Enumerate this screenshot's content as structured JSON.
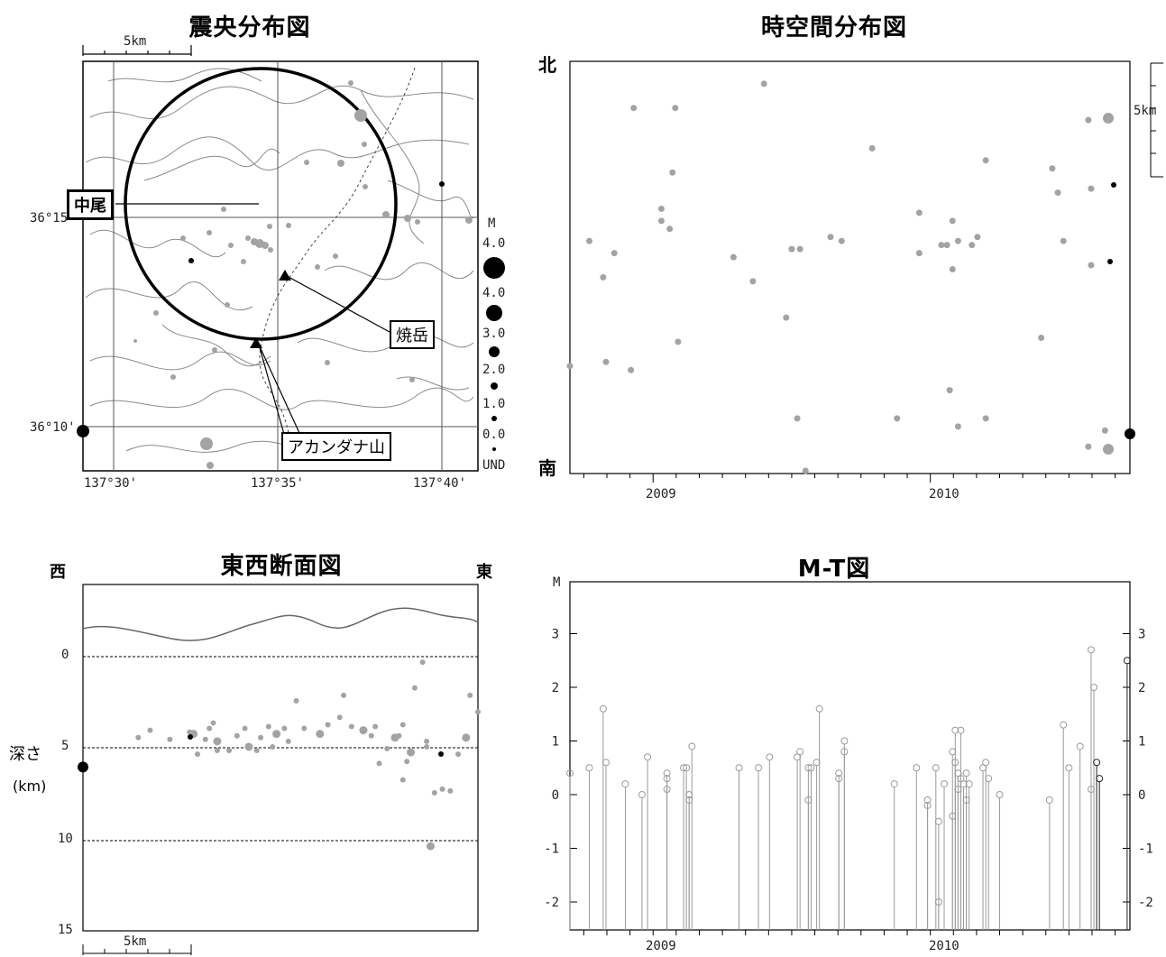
{
  "map": {
    "title": "震央分布図",
    "scale_label": "5km",
    "lat_labels": [
      "36°15'",
      "36°10'"
    ],
    "lon_labels": [
      "137°30'",
      "137°35'",
      "137°40'"
    ],
    "callouts": [
      "中尾",
      "焼岳",
      "アカンダナ山"
    ],
    "legend_title": "M",
    "legend_labels": [
      "4.0",
      "4.0",
      "3.0",
      "2.0",
      "1.0",
      "0.0",
      "UND"
    ]
  },
  "space_time": {
    "title": "時空間分布図",
    "north_label": "北",
    "south_label": "南",
    "scale_label": "5km",
    "x_ticks": [
      "2009",
      "2010"
    ]
  },
  "cross_section": {
    "title": "東西断面図",
    "west_label": "西",
    "east_label": "東",
    "ylabel_line1": "深さ",
    "ylabel_line2": "(km)",
    "y_ticks": [
      "0",
      "5",
      "10",
      "15"
    ],
    "scale_label": "5km"
  },
  "mt": {
    "title": "M-T図",
    "ylabel": "M",
    "y_ticks": [
      "3",
      "2",
      "1",
      "0",
      "-1",
      "-2"
    ],
    "x_ticks": [
      "2009",
      "2010"
    ]
  },
  "chart_data": [
    {
      "type": "scatter",
      "title": "時空間分布図",
      "xlabel": "",
      "ylabel": "",
      "xlim": [
        2008.7,
        2010.72
      ],
      "x_ticks": [
        "2009",
        "2010"
      ],
      "points": [
        {
          "x": 2008.7,
          "y": 0.26
        },
        {
          "x": 2008.77,
          "y": 0.57
        },
        {
          "x": 2008.82,
          "y": 0.48
        },
        {
          "x": 2008.83,
          "y": 0.27
        },
        {
          "x": 2008.86,
          "y": 0.54
        },
        {
          "x": 2008.92,
          "y": 0.25
        },
        {
          "x": 2008.93,
          "y": 0.9
        },
        {
          "x": 2009.03,
          "y": 0.65
        },
        {
          "x": 2009.03,
          "y": 0.62
        },
        {
          "x": 2009.06,
          "y": 0.6
        },
        {
          "x": 2009.08,
          "y": 0.9
        },
        {
          "x": 2009.07,
          "y": 0.74
        },
        {
          "x": 2009.09,
          "y": 0.32
        },
        {
          "x": 2009.29,
          "y": 0.53
        },
        {
          "x": 2009.36,
          "y": 0.47
        },
        {
          "x": 2009.4,
          "y": 0.96
        },
        {
          "x": 2009.48,
          "y": 0.38
        },
        {
          "x": 2009.5,
          "y": 0.55
        },
        {
          "x": 2009.53,
          "y": 0.55
        },
        {
          "x": 2009.52,
          "y": 0.13
        },
        {
          "x": 2009.55,
          "y": 0.0
        },
        {
          "x": 2009.64,
          "y": 0.58
        },
        {
          "x": 2009.68,
          "y": 0.57
        },
        {
          "x": 2009.79,
          "y": 0.8
        },
        {
          "x": 2009.88,
          "y": 0.13
        },
        {
          "x": 2009.96,
          "y": 0.64
        },
        {
          "x": 2009.96,
          "y": 0.54
        },
        {
          "x": 2010.04,
          "y": 0.56
        },
        {
          "x": 2010.06,
          "y": 0.56
        },
        {
          "x": 2010.08,
          "y": 0.62
        },
        {
          "x": 2010.08,
          "y": 0.5
        },
        {
          "x": 2010.1,
          "y": 0.57
        },
        {
          "x": 2010.07,
          "y": 0.2
        },
        {
          "x": 2010.1,
          "y": 0.11
        },
        {
          "x": 2010.15,
          "y": 0.56
        },
        {
          "x": 2010.17,
          "y": 0.58
        },
        {
          "x": 2010.2,
          "y": 0.77
        },
        {
          "x": 2010.2,
          "y": 0.13
        },
        {
          "x": 2010.4,
          "y": 0.33
        },
        {
          "x": 2010.48,
          "y": 0.57
        },
        {
          "x": 2010.44,
          "y": 0.75
        },
        {
          "x": 2010.46,
          "y": 0.69
        },
        {
          "x": 2010.57,
          "y": 0.87
        },
        {
          "x": 2010.57,
          "y": 0.06
        },
        {
          "x": 2010.58,
          "y": 0.7
        },
        {
          "x": 2010.58,
          "y": 0.51
        },
        {
          "x": 2010.63,
          "y": 0.1
        }
      ]
    },
    {
      "type": "scatter",
      "title": "M-T図",
      "xlabel": "",
      "ylabel": "M",
      "ylim": [
        -2.5,
        4
      ],
      "xlim": [
        2008.7,
        2010.72
      ],
      "x_ticks": [
        "2009",
        "2010"
      ],
      "points": [
        {
          "x": 2008.7,
          "y": 0.4
        },
        {
          "x": 2008.77,
          "y": 0.5
        },
        {
          "x": 2008.82,
          "y": 1.6
        },
        {
          "x": 2008.83,
          "y": 0.6
        },
        {
          "x": 2008.9,
          "y": 0.2
        },
        {
          "x": 2008.96,
          "y": 0.0
        },
        {
          "x": 2008.98,
          "y": 0.7
        },
        {
          "x": 2009.05,
          "y": 0.4
        },
        {
          "x": 2009.05,
          "y": 0.3
        },
        {
          "x": 2009.05,
          "y": 0.1
        },
        {
          "x": 2009.11,
          "y": 0.5
        },
        {
          "x": 2009.12,
          "y": 0.5
        },
        {
          "x": 2009.13,
          "y": -0.1
        },
        {
          "x": 2009.13,
          "y": 0.0
        },
        {
          "x": 2009.14,
          "y": 0.9
        },
        {
          "x": 2009.31,
          "y": 0.5
        },
        {
          "x": 2009.38,
          "y": 0.5
        },
        {
          "x": 2009.42,
          "y": 0.7
        },
        {
          "x": 2009.52,
          "y": 0.7
        },
        {
          "x": 2009.53,
          "y": 0.8
        },
        {
          "x": 2009.56,
          "y": 0.5
        },
        {
          "x": 2009.56,
          "y": -0.1
        },
        {
          "x": 2009.57,
          "y": 0.5
        },
        {
          "x": 2009.59,
          "y": 0.6
        },
        {
          "x": 2009.6,
          "y": 1.6
        },
        {
          "x": 2009.67,
          "y": 0.4
        },
        {
          "x": 2009.67,
          "y": 0.3
        },
        {
          "x": 2009.69,
          "y": 1.0
        },
        {
          "x": 2009.69,
          "y": 0.8
        },
        {
          "x": 2009.87,
          "y": 0.2
        },
        {
          "x": 2009.95,
          "y": 0.5
        },
        {
          "x": 2009.99,
          "y": -0.1
        },
        {
          "x": 2009.99,
          "y": -0.2
        },
        {
          "x": 2010.02,
          "y": 0.5
        },
        {
          "x": 2010.03,
          "y": -0.5
        },
        {
          "x": 2010.03,
          "y": -2.0
        },
        {
          "x": 2010.05,
          "y": 0.2
        },
        {
          "x": 2010.08,
          "y": 0.8
        },
        {
          "x": 2010.08,
          "y": -0.4
        },
        {
          "x": 2010.09,
          "y": 1.2
        },
        {
          "x": 2010.09,
          "y": 0.6
        },
        {
          "x": 2010.1,
          "y": 0.4
        },
        {
          "x": 2010.1,
          "y": 0.1
        },
        {
          "x": 2010.11,
          "y": 1.2
        },
        {
          "x": 2010.11,
          "y": 0.3
        },
        {
          "x": 2010.12,
          "y": 0.2
        },
        {
          "x": 2010.13,
          "y": 0.4
        },
        {
          "x": 2010.13,
          "y": -0.1
        },
        {
          "x": 2010.14,
          "y": 0.2
        },
        {
          "x": 2010.19,
          "y": 0.5
        },
        {
          "x": 2010.2,
          "y": 0.6
        },
        {
          "x": 2010.21,
          "y": 0.3
        },
        {
          "x": 2010.25,
          "y": 0.0
        },
        {
          "x": 2010.43,
          "y": -0.1
        },
        {
          "x": 2010.48,
          "y": 1.3
        },
        {
          "x": 2010.5,
          "y": 0.5
        },
        {
          "x": 2010.54,
          "y": 0.9
        },
        {
          "x": 2010.58,
          "y": 0.1
        },
        {
          "x": 2010.58,
          "y": 2.7
        },
        {
          "x": 2010.59,
          "y": 2.0
        },
        {
          "x": 2010.6,
          "y": 0.6
        },
        {
          "x": 2010.61,
          "y": 0.3
        },
        {
          "x": 2010.71,
          "y": 2.5
        }
      ]
    },
    {
      "type": "scatter",
      "title": "東西断面図",
      "xlabel": "",
      "ylabel": "深さ (km)",
      "ylim": [
        15,
        -4
      ],
      "y_ticks": [
        "0",
        "5",
        "10",
        "15"
      ],
      "points": [
        {
          "x": 0.0,
          "y": 6.0
        },
        {
          "x": 0.14,
          "y": 4.4
        },
        {
          "x": 0.17,
          "y": 4.0
        },
        {
          "x": 0.22,
          "y": 4.5
        },
        {
          "x": 0.27,
          "y": 4.1
        },
        {
          "x": 0.28,
          "y": 4.2
        },
        {
          "x": 0.29,
          "y": 5.3
        },
        {
          "x": 0.31,
          "y": 4.5
        },
        {
          "x": 0.32,
          "y": 3.9
        },
        {
          "x": 0.33,
          "y": 3.6
        },
        {
          "x": 0.34,
          "y": 4.6
        },
        {
          "x": 0.34,
          "y": 5.1
        },
        {
          "x": 0.37,
          "y": 5.1
        },
        {
          "x": 0.39,
          "y": 4.3
        },
        {
          "x": 0.41,
          "y": 3.9
        },
        {
          "x": 0.42,
          "y": 4.9
        },
        {
          "x": 0.44,
          "y": 5.1
        },
        {
          "x": 0.45,
          "y": 4.4
        },
        {
          "x": 0.47,
          "y": 3.8
        },
        {
          "x": 0.48,
          "y": 4.9
        },
        {
          "x": 0.49,
          "y": 4.2
        },
        {
          "x": 0.51,
          "y": 3.9
        },
        {
          "x": 0.52,
          "y": 4.6
        },
        {
          "x": 0.54,
          "y": 2.4
        },
        {
          "x": 0.56,
          "y": 3.9
        },
        {
          "x": 0.6,
          "y": 4.2
        },
        {
          "x": 0.62,
          "y": 3.7
        },
        {
          "x": 0.65,
          "y": 3.3
        },
        {
          "x": 0.66,
          "y": 2.1
        },
        {
          "x": 0.68,
          "y": 3.8
        },
        {
          "x": 0.71,
          "y": 4.0
        },
        {
          "x": 0.73,
          "y": 4.3
        },
        {
          "x": 0.74,
          "y": 3.8
        },
        {
          "x": 0.75,
          "y": 5.8
        },
        {
          "x": 0.77,
          "y": 5.0
        },
        {
          "x": 0.79,
          "y": 4.4
        },
        {
          "x": 0.8,
          "y": 4.3
        },
        {
          "x": 0.81,
          "y": 3.7
        },
        {
          "x": 0.82,
          "y": 5.7
        },
        {
          "x": 0.81,
          "y": 6.7
        },
        {
          "x": 0.83,
          "y": 5.2
        },
        {
          "x": 0.87,
          "y": 4.6
        },
        {
          "x": 0.84,
          "y": 1.7
        },
        {
          "x": 0.86,
          "y": 0.3
        },
        {
          "x": 0.87,
          "y": 4.9
        },
        {
          "x": 0.88,
          "y": 10.3
        },
        {
          "x": 0.89,
          "y": 7.4
        },
        {
          "x": 0.91,
          "y": 7.2
        },
        {
          "x": 0.93,
          "y": 7.3
        },
        {
          "x": 0.95,
          "y": 5.3
        },
        {
          "x": 0.97,
          "y": 4.4
        },
        {
          "x": 0.98,
          "y": 2.1
        },
        {
          "x": 1.0,
          "y": 3.0
        }
      ]
    }
  ]
}
